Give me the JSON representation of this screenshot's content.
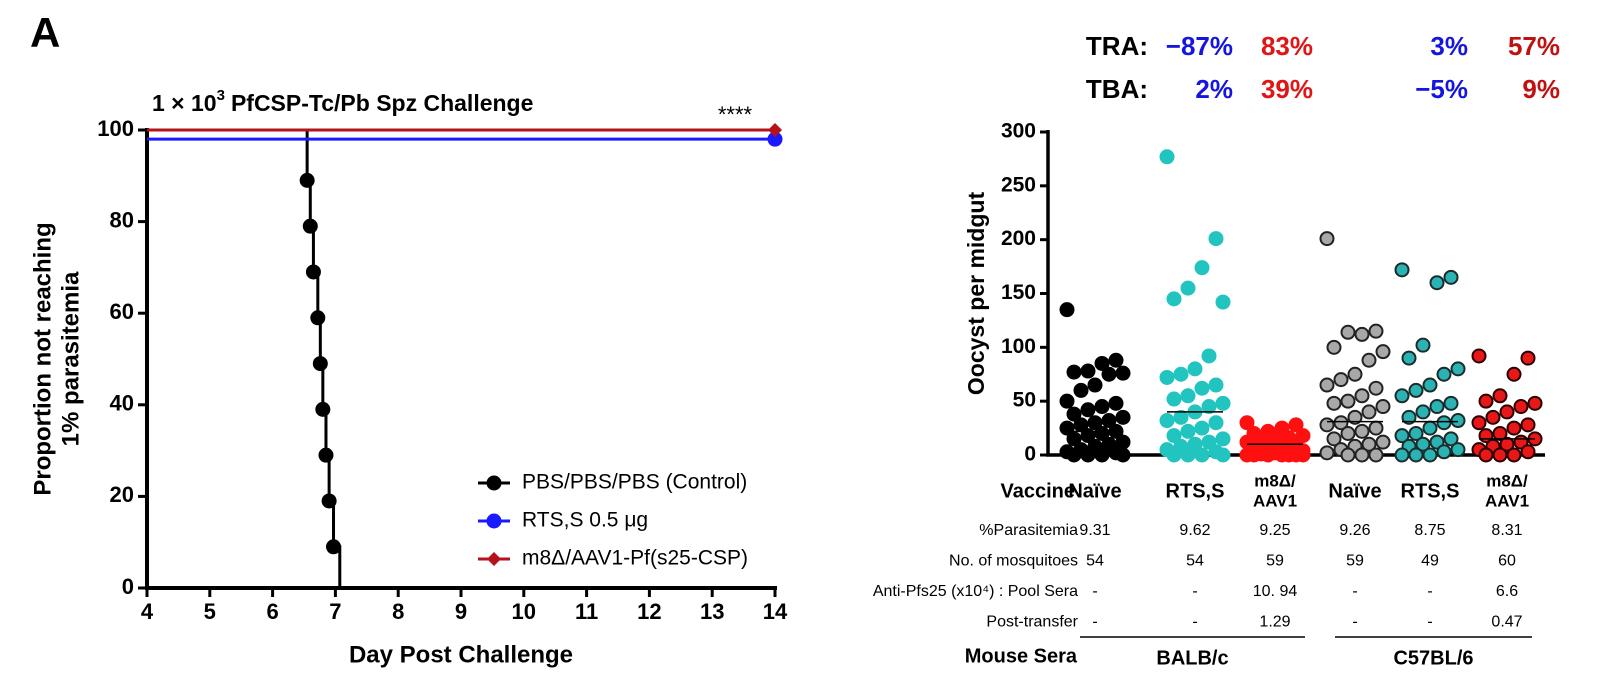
{
  "panel_label": "A",
  "chart_data": [
    {
      "type": "line",
      "step": true,
      "title": [
        "1 × 10",
        "3",
        "PfCSP-Tc/Pb Spz Challenge"
      ],
      "annotation": "****",
      "ylabel": [
        "Proportion not reaching",
        "1% parasitemia"
      ],
      "xlabel": "Day Post Challenge",
      "xlim": [
        4,
        14
      ],
      "xticks": [
        4,
        5,
        6,
        7,
        8,
        9,
        10,
        11,
        12,
        13,
        14
      ],
      "ylim": [
        0,
        100
      ],
      "yticks": [
        0,
        20,
        40,
        60,
        80,
        100
      ],
      "series": [
        {
          "name": "PBS/PBS/PBS (Control)",
          "color": "#000000",
          "marker": "circle",
          "x": [
            4,
            6.55,
            6.6,
            6.65,
            6.72,
            6.76,
            6.8,
            6.85,
            6.9,
            6.97,
            7.07
          ],
          "values": [
            100,
            89,
            79,
            69,
            59,
            49,
            39,
            29,
            19,
            9,
            0
          ]
        },
        {
          "name": "RTS,S 0.5 μg",
          "color": "#1a1aff",
          "marker": "circle",
          "x": [
            4,
            14
          ],
          "values": [
            98,
            98
          ]
        },
        {
          "name": "m8Δ/AAV1-Pf(s25-CSP)",
          "color": "#b5121b",
          "marker": "diamond",
          "x": [
            4,
            14
          ],
          "values": [
            100,
            100
          ]
        }
      ]
    },
    {
      "type": "strip",
      "ylabel": "Oocyst per midgut",
      "ylim": [
        0,
        300
      ],
      "yticks": [
        0,
        50,
        100,
        150,
        200,
        250,
        300
      ],
      "row_label": "Vaccine",
      "categories": [
        [
          "Naïve"
        ],
        [
          "RTS,S"
        ],
        [
          "m8Δ/",
          "AAV1"
        ],
        [
          "Naïve"
        ],
        [
          "RTS,S"
        ],
        [
          "m8Δ/",
          "AAV1"
        ]
      ],
      "groups": [
        {
          "color": "#000000",
          "edge": "#000000",
          "values": [
            135,
            88,
            85,
            78,
            77,
            76,
            75,
            65,
            60,
            50,
            48,
            45,
            42,
            38,
            35,
            32,
            30,
            28,
            25,
            22,
            20,
            18,
            15,
            12,
            10,
            8,
            5,
            3,
            2,
            0,
            0,
            0,
            0
          ]
        },
        {
          "color": "#22c4c0",
          "edge": "#22c4c0",
          "values": [
            277,
            201,
            174,
            155,
            145,
            142,
            92,
            80,
            75,
            72,
            65,
            62,
            55,
            52,
            48,
            45,
            40,
            35,
            32,
            30,
            25,
            22,
            18,
            15,
            12,
            10,
            8,
            5,
            3,
            0,
            0,
            0,
            0
          ]
        },
        {
          "color": "#ff1010",
          "edge": "#ff1010",
          "values": [
            30,
            28,
            25,
            22,
            20,
            18,
            16,
            15,
            14,
            12,
            10,
            8,
            7,
            5,
            4,
            3,
            2,
            1,
            0,
            0,
            0,
            0,
            0,
            0,
            0
          ]
        },
        {
          "color": "#a8a8a8",
          "edge": "#222222",
          "values": [
            201,
            115,
            112,
            114,
            100,
            96,
            88,
            75,
            70,
            65,
            62,
            55,
            50,
            48,
            45,
            40,
            35,
            30,
            28,
            25,
            22,
            20,
            15,
            12,
            10,
            8,
            5,
            2,
            0,
            0,
            0
          ]
        },
        {
          "color": "#2bb3b3",
          "edge": "#1c2c2c",
          "values": [
            172,
            165,
            160,
            102,
            90,
            80,
            75,
            65,
            60,
            55,
            48,
            45,
            40,
            35,
            32,
            30,
            25,
            20,
            18,
            15,
            12,
            10,
            8,
            5,
            3,
            0,
            0,
            0
          ]
        },
        {
          "color": "#e81818",
          "edge": "#2a0000",
          "values": [
            92,
            90,
            75,
            55,
            50,
            48,
            45,
            40,
            35,
            30,
            28,
            25,
            20,
            18,
            15,
            12,
            10,
            8,
            5,
            3,
            0,
            0,
            0
          ]
        }
      ],
      "means": [
        22,
        40,
        10,
        31,
        31,
        15
      ],
      "ratings": [
        {
          "label": "TRA:",
          "columns": [
            1,
            2,
            4,
            5
          ],
          "values": [
            -87,
            83,
            3,
            57
          ],
          "value_labels": [
            "−87%",
            "83%",
            "3%",
            "57%"
          ],
          "colors": [
            "#1515e0",
            "#e01515",
            "#1515e0",
            "#c01010"
          ]
        },
        {
          "label": "TBA:",
          "columns": [
            1,
            2,
            4,
            5
          ],
          "values": [
            2,
            39,
            -5,
            9
          ],
          "value_labels": [
            "2%",
            "39%",
            "−5%",
            "9%"
          ],
          "colors": [
            "#1515e0",
            "#e01515",
            "#1515e0",
            "#c01010"
          ]
        }
      ],
      "table": [
        {
          "label": "%Parasitemia",
          "cells": [
            9.31,
            9.62,
            9.25,
            9.26,
            8.75,
            8.31
          ]
        },
        {
          "label": "No. of mosquitoes",
          "cells": [
            54,
            54,
            59,
            59,
            49,
            60
          ]
        },
        {
          "label": "Anti-Pfs25 (x10⁴) : Pool Sera",
          "cells": [
            "-",
            "-",
            "10. 94",
            "-",
            "-",
            "6.6"
          ]
        },
        {
          "label": "Post-transfer",
          "cells": [
            "-",
            "-",
            "1.29",
            "-",
            "-",
            "0.47"
          ]
        }
      ],
      "mouse_sera": {
        "label": "Mouse Sera",
        "groups": [
          "BALB/c",
          "C57BL/6"
        ]
      }
    }
  ]
}
